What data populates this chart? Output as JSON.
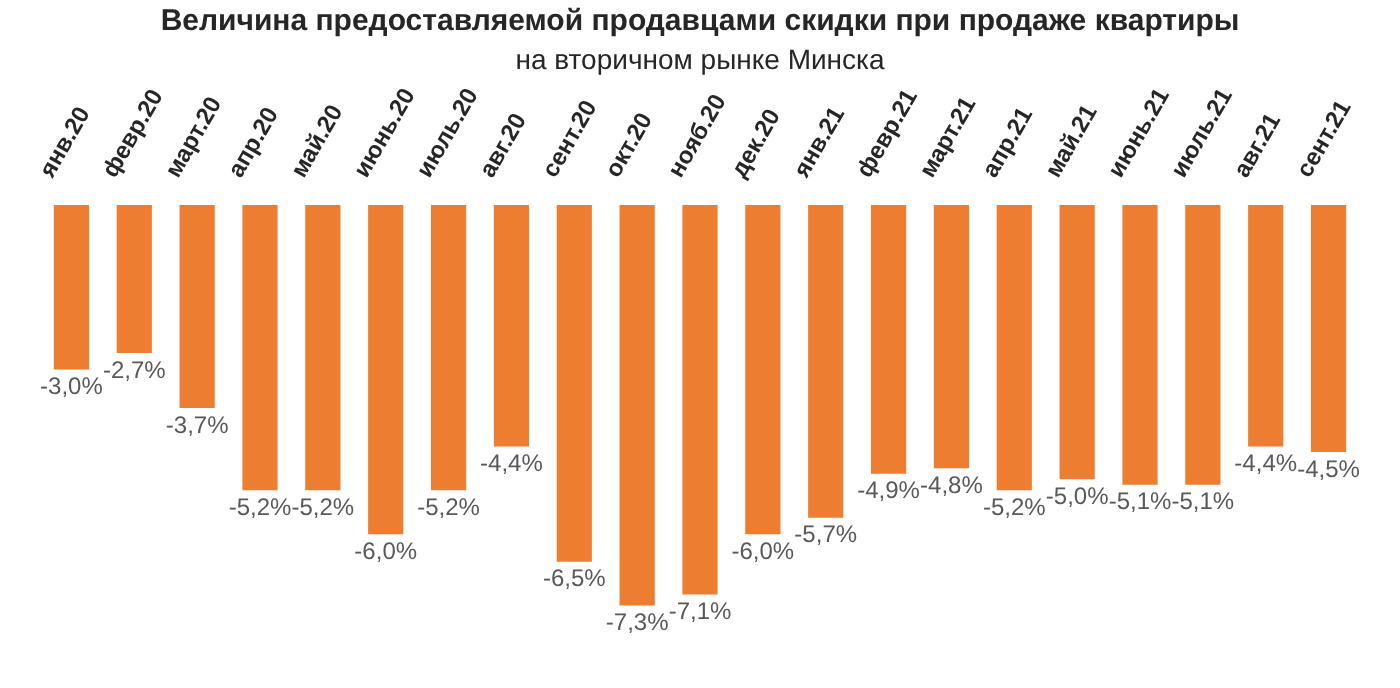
{
  "chart_data": {
    "type": "bar",
    "title": "Величина предоставляемой продавцами скидки при продаже квартиры",
    "subtitle": "на вторичном рынке Минска",
    "categories": [
      "янв.20",
      "февр.20",
      "март.20",
      "апр.20",
      "май.20",
      "июнь.20",
      "июль.20",
      "авг.20",
      "сент.20",
      "окт.20",
      "нояб.20",
      "дек.20",
      "янв.21",
      "февр.21",
      "март.21",
      "апр.21",
      "май.21",
      "июнь.21",
      "июль.21",
      "авг.21",
      "сент.21"
    ],
    "values": [
      -3.0,
      -2.7,
      -3.7,
      -5.2,
      -5.2,
      -6.0,
      -5.2,
      -4.4,
      -6.5,
      -7.3,
      -7.1,
      -6.0,
      -5.7,
      -4.9,
      -4.8,
      -5.2,
      -5.0,
      -5.1,
      -5.1,
      -4.4,
      -4.5
    ],
    "value_labels": [
      "-3,0%",
      "-2,7%",
      "-3,7%",
      "-5,2%",
      "-5,2%",
      "-6,0%",
      "-5,2%",
      "-4,4%",
      "-6,5%",
      "-7,3%",
      "-7,1%",
      "-6,0%",
      "-5,7%",
      "-4,9%",
      "-4,8%",
      "-5,2%",
      "-5,0%",
      "-5,1%",
      "-5,1%",
      "-4,4%",
      "-4,5%"
    ],
    "color": "#ed7d31",
    "grid": false,
    "legend": false
  }
}
